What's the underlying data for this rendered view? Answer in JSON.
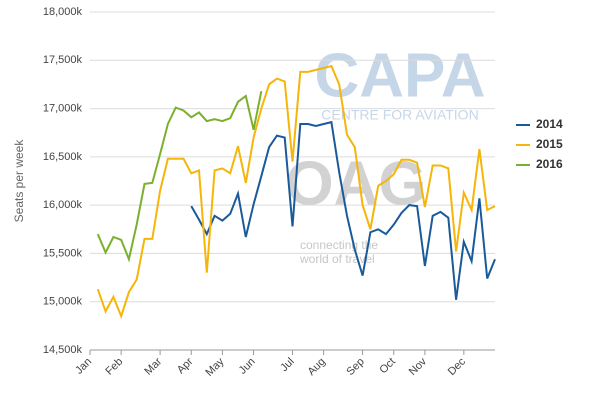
{
  "chart_data": {
    "type": "line",
    "y_label": "Seats per week",
    "watermarks": [
      "CAPA",
      "CENTRE FOR AVIATION",
      "OAG",
      "connecting the",
      "world of travel"
    ],
    "categories": [
      "Jan",
      null,
      null,
      null,
      "Feb",
      null,
      null,
      null,
      null,
      "Mar",
      null,
      null,
      null,
      "Apr",
      null,
      null,
      null,
      "May",
      null,
      null,
      null,
      "Jun",
      null,
      null,
      null,
      null,
      "Jul",
      null,
      null,
      null,
      "Aug",
      null,
      null,
      null,
      null,
      "Sep",
      null,
      null,
      null,
      "Oct",
      null,
      null,
      null,
      "Nov",
      null,
      null,
      null,
      null,
      "Dec",
      null,
      null,
      null,
      null
    ],
    "series": [
      {
        "name": "2014",
        "color": "#1a5a9a",
        "values": [
          null,
          null,
          null,
          null,
          null,
          null,
          null,
          null,
          null,
          null,
          null,
          null,
          null,
          15990,
          15850,
          15700,
          15890,
          15840,
          15910,
          16120,
          15670,
          16010,
          16300,
          16600,
          16720,
          16700,
          15780,
          16840,
          16840,
          16820,
          16840,
          16860,
          16340,
          15890,
          15540,
          15270,
          15720,
          15750,
          15700,
          15800,
          15920,
          16000,
          15990,
          15370,
          15890,
          15930,
          15870,
          15020,
          15620,
          15420,
          16070,
          15240,
          15440
        ]
      },
      {
        "name": "2015",
        "color": "#f5b50a",
        "values": [
          null,
          15130,
          14900,
          15050,
          14850,
          15100,
          15230,
          15650,
          15650,
          16150,
          16480,
          16480,
          16480,
          16330,
          16360,
          15300,
          16360,
          16380,
          16330,
          16610,
          16230,
          16700,
          17000,
          17250,
          17310,
          17280,
          16450,
          17380,
          17380,
          17400,
          17420,
          17440,
          17250,
          16730,
          16600,
          16000,
          15750,
          16200,
          16250,
          16320,
          16470,
          16470,
          16440,
          15980,
          16410,
          16410,
          16380,
          15520,
          16130,
          15950,
          16580,
          15950,
          15990
        ]
      },
      {
        "name": "2016",
        "color": "#7ab02c",
        "values": [
          null,
          15700,
          15510,
          15670,
          15640,
          15440,
          15800,
          16220,
          16230,
          16530,
          16840,
          17010,
          16980,
          16910,
          16960,
          16870,
          16890,
          16870,
          16900,
          17070,
          17130,
          16780,
          17180,
          null,
          null,
          null,
          null,
          null,
          null,
          null,
          null,
          null,
          null,
          null,
          null,
          null,
          null,
          null,
          null,
          null,
          null,
          null,
          null,
          null,
          null,
          null,
          null,
          null,
          null,
          null,
          null,
          null,
          null
        ]
      }
    ],
    "ylim": [
      14500,
      18000
    ],
    "yticks": [
      {
        "value": 14500,
        "label": "14,500k"
      },
      {
        "value": 15000,
        "label": "15,000k"
      },
      {
        "value": 15500,
        "label": "15,500k"
      },
      {
        "value": 16000,
        "label": "16,000k"
      },
      {
        "value": 16500,
        "label": "16,500k"
      },
      {
        "value": 17000,
        "label": "17,000k"
      },
      {
        "value": 17500,
        "label": "17,500k"
      },
      {
        "value": 18000,
        "label": "18,000k"
      }
    ],
    "grid": true,
    "legend": "right"
  }
}
